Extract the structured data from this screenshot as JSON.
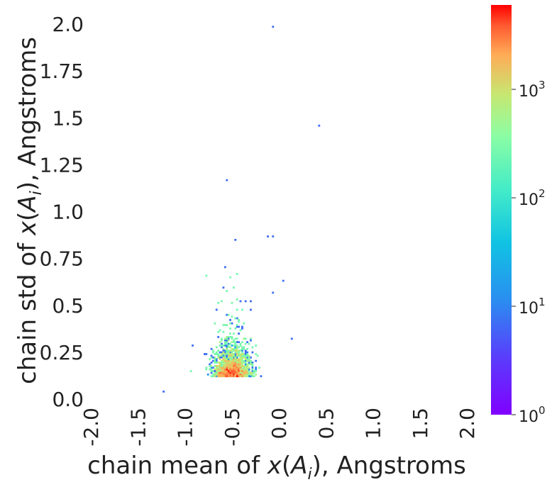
{
  "chart_data": {
    "type": "heatmap",
    "title": "",
    "xlabel": {
      "pre": "chain mean of ",
      "math_x": "x",
      "open": "(",
      "math_A": "A",
      "sub": "i",
      "close": "), Angstroms"
    },
    "ylabel": {
      "pre": "chain std of ",
      "math_x": "x",
      "open": "(",
      "math_A": "A",
      "sub": "i",
      "close": "), Angstroms"
    },
    "xlim": [
      -2.0,
      2.0
    ],
    "ylim": [
      0.0,
      2.0
    ],
    "x_ticks": [
      -2.0,
      -1.5,
      -1.0,
      -0.5,
      0.0,
      0.5,
      1.0,
      1.5,
      2.0
    ],
    "x_tick_labels": [
      "-2.0",
      "-1.5",
      "-1.0",
      "-0.5",
      "0.0",
      "0.5",
      "1.0",
      "1.5",
      "2.0"
    ],
    "y_ticks": [
      0.0,
      0.25,
      0.5,
      0.75,
      1.0,
      1.25,
      1.5,
      1.75,
      2.0
    ],
    "y_tick_labels": [
      "0.0",
      "0.25",
      "0.5",
      "0.75",
      "1.0",
      "1.25",
      "1.5",
      "1.75",
      "2.0"
    ],
    "grid": false,
    "colormap": "rainbow",
    "color_scale": "log",
    "colorbar": {
      "range": [
        1,
        6000
      ],
      "ticks": [
        {
          "value": 1,
          "base": "10",
          "exp": "0"
        },
        {
          "value": 10,
          "base": "10",
          "exp": "1"
        },
        {
          "value": 100,
          "base": "10",
          "exp": "2"
        },
        {
          "value": 1000,
          "base": "10",
          "exp": "3"
        }
      ]
    },
    "density_peak": {
      "x_mean": -0.5,
      "y_mean": 0.12,
      "x_spread": 0.09,
      "y_spread": 0.08,
      "max_count": 5500
    },
    "outlier_points": [
      {
        "x": -0.07,
        "y": 1.99
      },
      {
        "x": 0.43,
        "y": 1.46
      },
      {
        "x": -0.55,
        "y": 1.17
      },
      {
        "x": -0.47,
        "y": 0.85
      },
      {
        "x": -0.12,
        "y": 0.87
      },
      {
        "x": -0.07,
        "y": 0.87
      },
      {
        "x": 0.05,
        "y": 0.63
      },
      {
        "x": 0.13,
        "y": 0.32
      },
      {
        "x": -1.22,
        "y": 0.04
      },
      {
        "x": -0.92,
        "y": 0.29
      },
      {
        "x": -0.06,
        "y": 0.57
      }
    ]
  }
}
